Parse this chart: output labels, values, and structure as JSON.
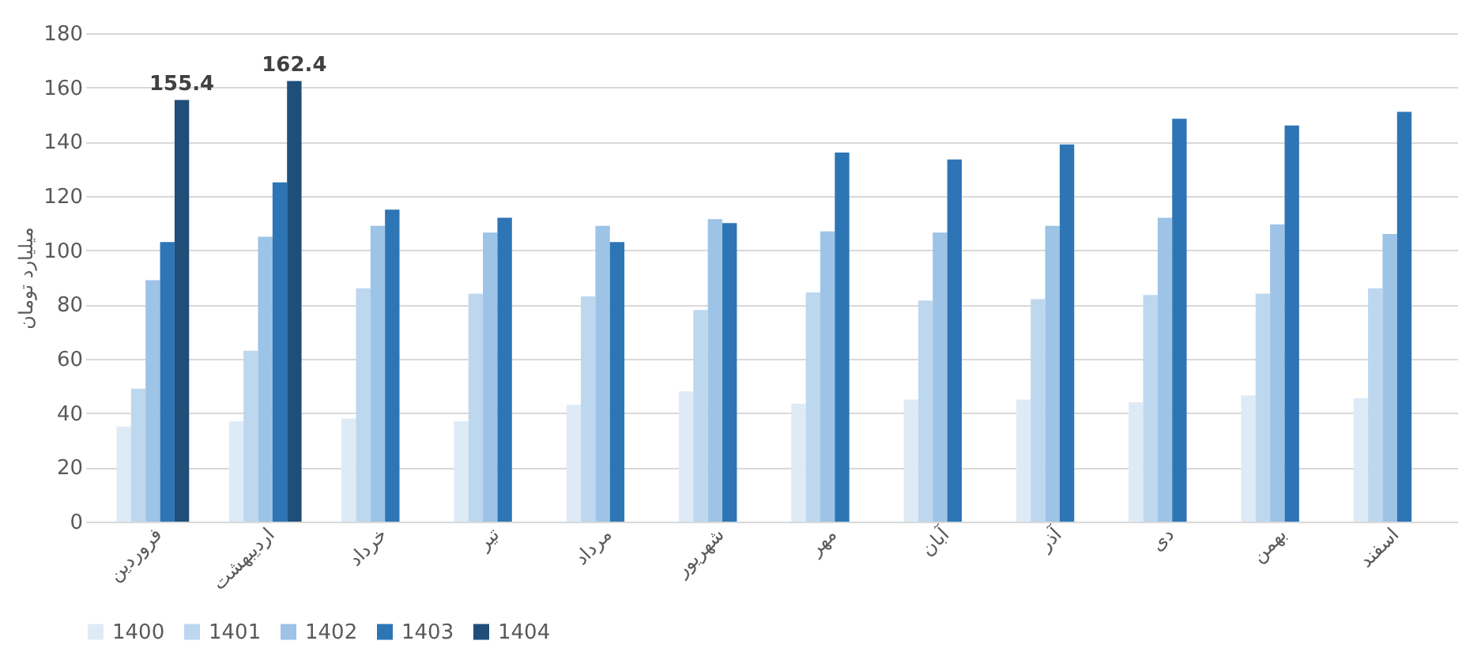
{
  "chart_data": {
    "type": "bar",
    "ylabel": "میلیارد تومان",
    "categories": [
      "فروردین",
      "اردیبهشت",
      "خرداد",
      "تیر",
      "مرداد",
      "شهریور",
      "مهر",
      "آبان",
      "آذر",
      "دی",
      "بهمن",
      "اسفند"
    ],
    "series": [
      {
        "name": "1400",
        "color": "#deebf7",
        "values": [
          35,
          37,
          38,
          37,
          43,
          48,
          43.5,
          45,
          45,
          44,
          46.5,
          45.5
        ]
      },
      {
        "name": "1401",
        "color": "#bdd7ee",
        "values": [
          49,
          63,
          86,
          84,
          83,
          78,
          84.5,
          81.5,
          82,
          83.5,
          84,
          86
        ]
      },
      {
        "name": "1402",
        "color": "#9dc3e6",
        "values": [
          89,
          105,
          109,
          106.5,
          109,
          111.5,
          107,
          106.5,
          109,
          112,
          109.5,
          106
        ]
      },
      {
        "name": "1403",
        "color": "#2e75b6",
        "values": [
          103,
          125,
          115,
          112,
          103,
          110,
          136,
          133.5,
          139,
          148.5,
          146,
          151
        ]
      },
      {
        "name": "1404",
        "color": "#1f4e79",
        "values": [
          155.4,
          162.4,
          null,
          null,
          null,
          null,
          null,
          null,
          null,
          null,
          null,
          null
        ],
        "value_labels": [
          "155.4",
          "162.4",
          null,
          null,
          null,
          null,
          null,
          null,
          null,
          null,
          null,
          null
        ]
      }
    ],
    "ylim": [
      0,
      180
    ],
    "yticks": [
      0,
      20,
      40,
      60,
      80,
      100,
      120,
      140,
      160,
      180
    ],
    "grid": "y",
    "legend": "bottom"
  }
}
